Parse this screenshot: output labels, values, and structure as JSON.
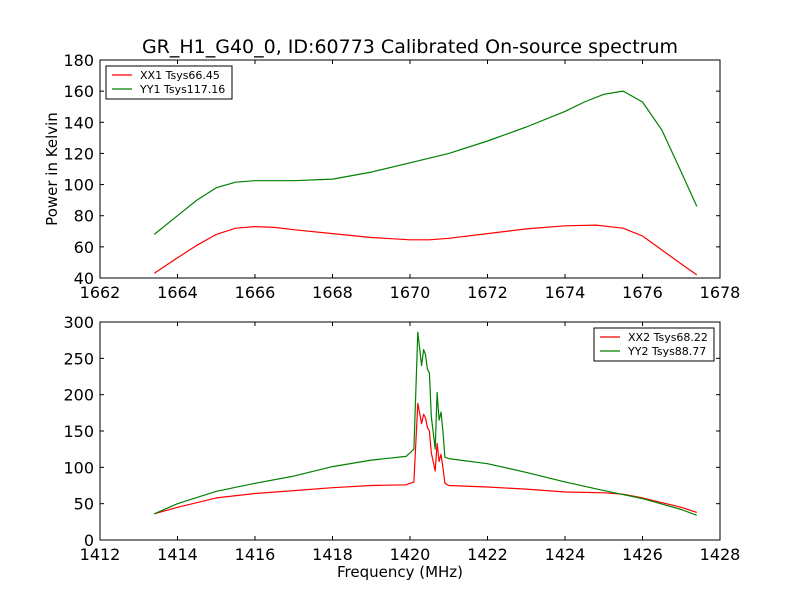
{
  "title": "GR_H1_G40_0, ID:60773 Calibrated On-source spectrum",
  "colors": {
    "red": "#ff0000",
    "green": "#008000",
    "axes": "#000000"
  },
  "chart_data": [
    {
      "type": "line",
      "panel": "top",
      "xlabel": "",
      "ylabel": "Power in Kelvin",
      "xlim": [
        1662,
        1678
      ],
      "ylim": [
        40,
        180
      ],
      "xticks": [
        1662,
        1664,
        1666,
        1668,
        1670,
        1672,
        1674,
        1676,
        1678
      ],
      "yticks": [
        40,
        60,
        80,
        100,
        120,
        140,
        160,
        180
      ],
      "grid": false,
      "legend_position": "top-left",
      "series": [
        {
          "name": "XX1 Tsys66.45",
          "color": "#ff0000",
          "x": [
            1663.4,
            1664.0,
            1664.5,
            1665.0,
            1665.5,
            1666.0,
            1666.5,
            1667.0,
            1668.0,
            1669.0,
            1670.0,
            1670.5,
            1671.0,
            1672.0,
            1673.0,
            1674.0,
            1674.8,
            1675.5,
            1676.0,
            1676.5,
            1677.0,
            1677.4
          ],
          "y": [
            43,
            53,
            61,
            68,
            72,
            73,
            72.5,
            71,
            68.5,
            66,
            64.5,
            64.5,
            65.5,
            68.5,
            71.5,
            73.5,
            74,
            72,
            67,
            58,
            49,
            42
          ]
        },
        {
          "name": "YY1 Tsys117.16",
          "color": "#008000",
          "x": [
            1663.4,
            1664.0,
            1664.5,
            1665.0,
            1665.5,
            1666.0,
            1666.5,
            1667.0,
            1668.0,
            1669.0,
            1670.0,
            1671.0,
            1672.0,
            1673.0,
            1674.0,
            1674.5,
            1675.0,
            1675.5,
            1676.0,
            1676.5,
            1677.0,
            1677.4
          ],
          "y": [
            68,
            80,
            90,
            98,
            101.5,
            102.5,
            102.5,
            102.5,
            103.5,
            108,
            114,
            120,
            128,
            137,
            147,
            153,
            158,
            160,
            153,
            135,
            108,
            86
          ]
        }
      ]
    },
    {
      "type": "line",
      "panel": "bottom",
      "xlabel": "Frequency (MHz)",
      "ylabel": "",
      "xlim": [
        1412,
        1428
      ],
      "ylim": [
        0,
        300
      ],
      "xticks": [
        1412,
        1414,
        1416,
        1418,
        1420,
        1422,
        1424,
        1426,
        1428
      ],
      "yticks": [
        0,
        50,
        100,
        150,
        200,
        250,
        300
      ],
      "grid": false,
      "legend_position": "top-right",
      "series": [
        {
          "name": "XX2 Tsys68.22",
          "color": "#ff0000",
          "x": [
            1413.4,
            1414.0,
            1415.0,
            1416.0,
            1417.0,
            1418.0,
            1419.0,
            1419.9,
            1420.1,
            1420.2,
            1420.3,
            1420.35,
            1420.4,
            1420.45,
            1420.5,
            1420.55,
            1420.65,
            1420.7,
            1420.75,
            1420.8,
            1420.85,
            1420.9,
            1421.0,
            1422.0,
            1423.0,
            1424.0,
            1425.0,
            1425.5,
            1426.0,
            1427.0,
            1427.4
          ],
          "y": [
            36,
            45,
            58,
            64,
            68,
            72,
            75,
            76,
            80,
            188,
            160,
            173,
            168,
            155,
            150,
            120,
            95,
            133,
            108,
            118,
            100,
            78,
            75,
            73,
            70,
            66,
            65,
            63,
            58,
            45,
            38
          ]
        },
        {
          "name": "YY2 Tsys88.77",
          "color": "#008000",
          "x": [
            1413.4,
            1414.0,
            1415.0,
            1416.0,
            1417.0,
            1418.0,
            1419.0,
            1419.9,
            1420.1,
            1420.2,
            1420.3,
            1420.35,
            1420.4,
            1420.45,
            1420.5,
            1420.55,
            1420.65,
            1420.7,
            1420.75,
            1420.8,
            1420.85,
            1420.9,
            1421.0,
            1422.0,
            1423.0,
            1424.0,
            1425.0,
            1426.0,
            1427.0,
            1427.4
          ],
          "y": [
            36,
            50,
            67,
            78,
            88,
            101,
            110,
            115,
            125,
            286,
            240,
            262,
            255,
            235,
            230,
            170,
            125,
            203,
            165,
            176,
            150,
            114,
            112,
            105,
            93,
            80,
            68,
            57,
            42,
            34
          ]
        }
      ]
    }
  ]
}
